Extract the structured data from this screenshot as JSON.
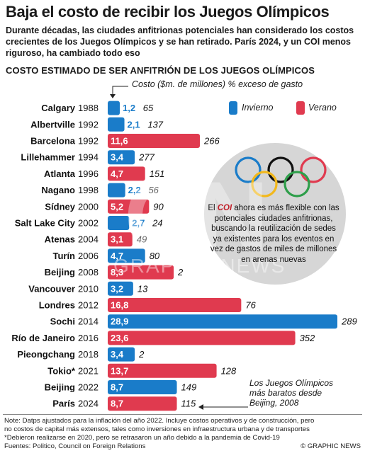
{
  "header": {
    "title": "Baja el costo de recibir los Juegos Olímpicos",
    "subtitle": "Durante décadas, las ciudades anfitrionas potenciales han considerado los costos crecientes de los Juegos Olímpicos y se han retirado. París 2024, y un COI menos riguroso, ha cambiado todo eso",
    "section_heading": "COSTO ESTIMADO DE SER ANFITRIÓN DE LOS JUEGOS OLÍMPICOS"
  },
  "chart_data": {
    "type": "bar",
    "orientation": "horizontal",
    "value_label": "Costo ($m. de millones)",
    "overrun_label": "% exceso de gasto",
    "legend": [
      {
        "name": "Invierno",
        "color": "#1a7cc9"
      },
      {
        "name": "Verano",
        "color": "#e03a4f"
      }
    ],
    "rows": [
      {
        "city": "Calgary",
        "year": "1988",
        "season": "Invierno",
        "cost": 1.2,
        "cost_label": "1,2",
        "overrun": "65"
      },
      {
        "city": "Albertville",
        "year": "1992",
        "season": "Invierno",
        "cost": 2.1,
        "cost_label": "2,1",
        "overrun": "137"
      },
      {
        "city": "Barcelona",
        "year": "1992",
        "season": "Verano",
        "cost": 11.6,
        "cost_label": "11,6",
        "overrun": "266"
      },
      {
        "city": "Lillehammer",
        "year": "1994",
        "season": "Invierno",
        "cost": 3.4,
        "cost_label": "3,4",
        "overrun": "277"
      },
      {
        "city": "Atlanta",
        "year": "1996",
        "season": "Verano",
        "cost": 4.7,
        "cost_label": "4,7",
        "overrun": "151"
      },
      {
        "city": "Nagano",
        "year": "1998",
        "season": "Invierno",
        "cost": 2.2,
        "cost_label": "2,2",
        "overrun": "56"
      },
      {
        "city": "Sídney",
        "year": "2000",
        "season": "Verano",
        "cost": 5.2,
        "cost_label": "5,2",
        "overrun": "90"
      },
      {
        "city": "Salt Lake City",
        "year": "2002",
        "season": "Invierno",
        "cost": 2.7,
        "cost_label": "2,7",
        "overrun": "24"
      },
      {
        "city": "Atenas",
        "year": "2004",
        "season": "Verano",
        "cost": 3.1,
        "cost_label": "3,1",
        "overrun": "49"
      },
      {
        "city": "Turín",
        "year": "2006",
        "season": "Invierno",
        "cost": 4.7,
        "cost_label": "4,7",
        "overrun": "80"
      },
      {
        "city": "Beijing",
        "year": "2008",
        "season": "Verano",
        "cost": 8.3,
        "cost_label": "8,3",
        "overrun": "2"
      },
      {
        "city": "Vancouver",
        "year": "2010",
        "season": "Invierno",
        "cost": 3.2,
        "cost_label": "3,2",
        "overrun": "13"
      },
      {
        "city": "Londres",
        "year": "2012",
        "season": "Verano",
        "cost": 16.8,
        "cost_label": "16,8",
        "overrun": "76"
      },
      {
        "city": "Sochi",
        "year": "2014",
        "season": "Invierno",
        "cost": 28.9,
        "cost_label": "28,9",
        "overrun": "289"
      },
      {
        "city": "Río de Janeiro",
        "year": "2016",
        "season": "Verano",
        "cost": 23.6,
        "cost_label": "23,6",
        "overrun": "352"
      },
      {
        "city": "Pieongchang",
        "year": "2018",
        "season": "Invierno",
        "cost": 3.4,
        "cost_label": "3,4",
        "overrun": "2"
      },
      {
        "city": "Tokio*",
        "year": "2021",
        "season": "Verano",
        "cost": 13.7,
        "cost_label": "13,7",
        "overrun": "128"
      },
      {
        "city": "Beijing",
        "year": "2022",
        "season": "Invierno",
        "cost": 8.7,
        "cost_label": "8,7",
        "overrun": "149"
      },
      {
        "city": "París",
        "year": "2024",
        "season": "Verano",
        "cost": 8.7,
        "cost_label": "8,7",
        "overrun": "115"
      }
    ]
  },
  "callout": {
    "prefix": "El ",
    "emphasis": "COI",
    "text": " ahora es más flexible con las potenciales ciudades anfitrionas, buscando la reutilización de sedes ya existentes para los eventos en vez de gastos de miles de millones en arenas nuevas"
  },
  "annotation": "Los Juegos Olímpicos más baratos desde Beijing, 2008",
  "watermark": {
    "mark": "GN",
    "text": "GRAPHIC NEWS"
  },
  "footer": {
    "note1": "Note: Datps ajustados para la inflación del año 2022. Incluye costos operativos y de construcción, pero",
    "note2": "no costos de capital más extensos, tales como inversiones en infraestructura urbana y de transportes",
    "note3": "*Debieron realizarse en 2020, pero se retrasaron un año debido a la pandemia de Covid-19",
    "sources": "Fuentes: Politico, Council on Foreign Relations",
    "credit": "© GRAPHIC NEWS"
  }
}
